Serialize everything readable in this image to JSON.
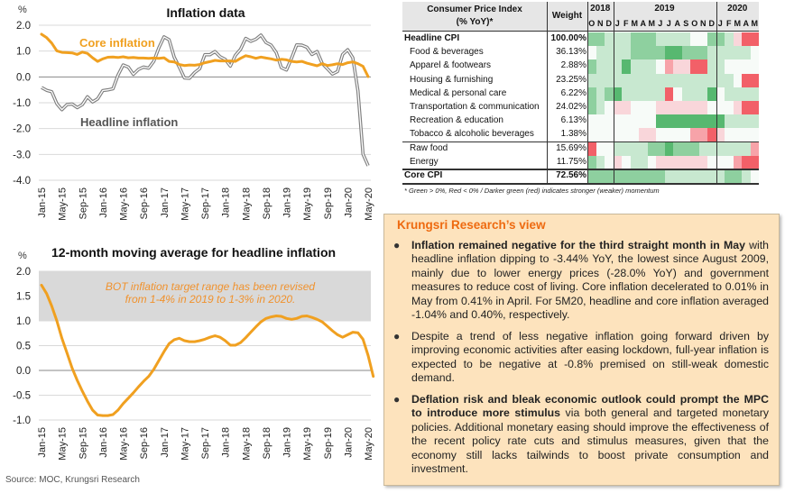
{
  "chart_data": [
    {
      "type": "line",
      "title": "Inflation data",
      "ylabel": "%",
      "xlabel": "",
      "ylim": [
        -4.0,
        2.0
      ],
      "yticks": [
        "2.0",
        "1.0",
        "0.0",
        "-1.0",
        "-2.0",
        "-3.0",
        "-4.0"
      ],
      "ytick_values": [
        2,
        1,
        0,
        -1,
        -2,
        -3,
        -4
      ],
      "grid": true,
      "x_tick_labels": [
        "Jan-15",
        "May-15",
        "Sep-15",
        "Jan-16",
        "May-16",
        "Sep-16",
        "Jan-17",
        "May-17",
        "Sep-17",
        "Jan-18",
        "May-18",
        "Sep-18",
        "Jan-19",
        "May-19",
        "Sep-19",
        "Jan-20",
        "May-20"
      ],
      "x_start": "Jan-15",
      "x_end": "May-20",
      "annotations": [
        {
          "text": "Core inflation",
          "series": "Core inflation"
        },
        {
          "text": "Headline inflation",
          "series": "Headline inflation"
        }
      ],
      "series": [
        {
          "name": "Headline inflation",
          "color": "#7f7f7f",
          "style": "double-line",
          "values": [
            -0.41,
            -0.52,
            -0.57,
            -1.04,
            -1.27,
            -1.07,
            -1.05,
            -1.19,
            -1.07,
            -0.77,
            -0.97,
            -0.85,
            -0.53,
            -0.5,
            -0.46,
            0.07,
            0.46,
            0.38,
            0.1,
            0.29,
            0.38,
            0.34,
            0.6,
            1.13,
            1.55,
            1.44,
            0.76,
            0.38,
            -0.04,
            -0.05,
            0.17,
            0.32,
            0.86,
            0.86,
            0.98,
            0.78,
            0.68,
            0.42,
            0.84,
            1.07,
            1.49,
            1.38,
            1.46,
            1.62,
            1.33,
            1.23,
            0.94,
            0.36,
            0.27,
            0.73,
            1.24,
            1.23,
            1.15,
            0.87,
            0.98,
            0.52,
            0.32,
            0.11,
            0.21,
            0.87,
            1.05,
            0.74,
            -0.54,
            -2.99,
            -3.44
          ]
        },
        {
          "name": "Core inflation",
          "color": "#f0a020",
          "style": "solid",
          "values": [
            1.65,
            1.52,
            1.31,
            1.01,
            0.95,
            0.94,
            0.93,
            0.87,
            0.96,
            0.91,
            0.74,
            0.6,
            0.7,
            0.76,
            0.77,
            0.75,
            0.78,
            0.74,
            0.75,
            0.73,
            0.73,
            0.72,
            0.73,
            0.72,
            0.74,
            0.6,
            0.58,
            0.48,
            0.44,
            0.46,
            0.45,
            0.48,
            0.55,
            0.59,
            0.64,
            0.62,
            0.62,
            0.62,
            0.6,
            0.72,
            0.82,
            0.78,
            0.72,
            0.77,
            0.73,
            0.7,
            0.65,
            0.68,
            0.66,
            0.6,
            0.58,
            0.6,
            0.53,
            0.48,
            0.43,
            0.51,
            0.44,
            0.47,
            0.51,
            0.48,
            0.55,
            0.58,
            0.51,
            0.41,
            0.01
          ]
        }
      ]
    },
    {
      "type": "line",
      "title": "12-month moving average for headline inflation",
      "ylabel": "%",
      "xlabel": "",
      "ylim": [
        -1.0,
        2.0
      ],
      "yticks": [
        "2.0",
        "1.5",
        "1.0",
        "0.5",
        "0.0",
        "-0.5",
        "-1.0"
      ],
      "ytick_values": [
        2,
        1.5,
        1,
        0.5,
        0,
        -0.5,
        -1
      ],
      "grid": true,
      "shaded_band": {
        "from": 1.0,
        "to": 2.0,
        "color": "#d9d9d9"
      },
      "annotation": [
        "BOT inflation target range has been revised",
        "from 1-4% in 2019 to 1-3% in 2020."
      ],
      "x_tick_labels": [
        "Jan-15",
        "May-15",
        "Sep-15",
        "Jan-16",
        "May-16",
        "Sep-16",
        "Jan-17",
        "May-17",
        "Sep-17",
        "Jan-18",
        "May-18",
        "Sep-18",
        "Jan-19",
        "May-19",
        "Sep-19",
        "Jan-20",
        "May-20"
      ],
      "series": [
        {
          "name": "12-month moving average headline inflation",
          "color": "#f0a020",
          "values": [
            1.72,
            1.55,
            1.3,
            1.0,
            0.65,
            0.35,
            0.05,
            -0.2,
            -0.42,
            -0.62,
            -0.8,
            -0.9,
            -0.91,
            -0.91,
            -0.89,
            -0.8,
            -0.67,
            -0.56,
            -0.45,
            -0.33,
            -0.22,
            -0.12,
            0.02,
            0.2,
            0.38,
            0.54,
            0.62,
            0.65,
            0.6,
            0.58,
            0.58,
            0.6,
            0.63,
            0.67,
            0.7,
            0.67,
            0.6,
            0.51,
            0.51,
            0.56,
            0.66,
            0.77,
            0.88,
            0.98,
            1.05,
            1.08,
            1.1,
            1.09,
            1.05,
            1.03,
            1.05,
            1.09,
            1.1,
            1.07,
            1.03,
            0.98,
            0.89,
            0.8,
            0.72,
            0.67,
            0.72,
            0.77,
            0.76,
            0.63,
            0.3,
            -0.12
          ]
        }
      ]
    },
    {
      "type": "heatmap",
      "title": "Consumer Price Index (%YoY)*",
      "column_years": [
        {
          "year": "2018",
          "span": 3
        },
        {
          "year": "2019",
          "span": 12
        },
        {
          "year": "2020",
          "span": 5
        }
      ],
      "columns": [
        "O",
        "N",
        "D",
        "J",
        "F",
        "M",
        "A",
        "M",
        "J",
        "J",
        "A",
        "S",
        "O",
        "N",
        "D",
        "J",
        "F",
        "M",
        "A",
        "M"
      ],
      "scale_note": "cell value = momentum level: +3 dark green ... 0 neutral ... -3 dark red",
      "rows": [
        {
          "label": "Headline CPI",
          "weight": "100.00%",
          "bold": true,
          "values": [
            2,
            2,
            1,
            1,
            1,
            2,
            2,
            2,
            1,
            1,
            1,
            1,
            0,
            0,
            2,
            2,
            1,
            -1,
            -3,
            -3
          ]
        },
        {
          "label": "Food & beverages",
          "weight": "36.13%",
          "indent": true,
          "values": [
            0,
            1,
            1,
            1,
            1,
            2,
            2,
            2,
            2,
            3,
            3,
            2,
            2,
            2,
            1,
            1,
            1,
            1,
            1,
            0
          ]
        },
        {
          "label": "Apparel & footwears",
          "weight": "2.88%",
          "indent": true,
          "values": [
            2,
            1,
            1,
            1,
            3,
            1,
            1,
            1,
            0,
            -2,
            -1,
            -1,
            -3,
            -3,
            1,
            1,
            0,
            0,
            0,
            0
          ]
        },
        {
          "label": "Housing & furnishing",
          "weight": "23.25%",
          "indent": true,
          "values": [
            1,
            1,
            1,
            1,
            1,
            1,
            1,
            1,
            1,
            1,
            1,
            1,
            1,
            1,
            1,
            1,
            1,
            0,
            -3,
            -3
          ]
        },
        {
          "label": "Medical & personal care",
          "weight": "6.22%",
          "indent": true,
          "values": [
            2,
            1,
            2,
            3,
            1,
            1,
            1,
            1,
            1,
            -3,
            0,
            1,
            1,
            1,
            3,
            0,
            1,
            1,
            1,
            1
          ]
        },
        {
          "label": "Transportation & communication",
          "weight": "24.02%",
          "indent": true,
          "values": [
            2,
            1,
            0,
            -1,
            -1,
            0,
            0,
            0,
            -1,
            -1,
            -1,
            -1,
            -1,
            -1,
            0,
            0,
            0,
            -1,
            -3,
            -3
          ]
        },
        {
          "label": "Recreation & education",
          "weight": "6.13%",
          "indent": true,
          "values": [
            0,
            0,
            0,
            0,
            0,
            0,
            0,
            0,
            3,
            3,
            3,
            3,
            3,
            3,
            3,
            3,
            1,
            1,
            1,
            1
          ]
        },
        {
          "label": "Tobacco & alcoholic beverages",
          "weight": "1.38%",
          "indent": true,
          "values": [
            0,
            0,
            0,
            0,
            0,
            0,
            -1,
            -1,
            0,
            0,
            0,
            0,
            -2,
            -2,
            -3,
            -1,
            0,
            0,
            0,
            0
          ]
        },
        {
          "label": "Raw food",
          "weight": "15.69%",
          "indent": true,
          "group_start": true,
          "values": [
            -3,
            0,
            0,
            1,
            1,
            1,
            1,
            2,
            2,
            3,
            2,
            2,
            2,
            1,
            1,
            1,
            1,
            1,
            1,
            -2
          ]
        },
        {
          "label": "Energy",
          "weight": "11.75%",
          "indent": true,
          "values": [
            2,
            1,
            0,
            -1,
            0,
            1,
            1,
            0,
            -1,
            -1,
            -1,
            -1,
            -1,
            -1,
            0,
            0,
            0,
            -2,
            -3,
            -3
          ]
        },
        {
          "label": "Core CPI",
          "weight": "72.56%",
          "bold": true,
          "group_start": true,
          "values": [
            2,
            2,
            2,
            2,
            2,
            2,
            2,
            2,
            2,
            1,
            1,
            1,
            1,
            1,
            1,
            1,
            2,
            2,
            1,
            0
          ]
        }
      ],
      "header_label_line1": "Consumer Price Index",
      "header_label_line2": "(% YoY)*",
      "weight_header": "Weight",
      "footnote": "* Green > 0%, Red < 0% / Darker green (red) indicates stronger (weaker) momentum",
      "colors": {
        "green3": "#57b870",
        "green2": "#8ed09f",
        "green1": "#c8e8d0",
        "neutral": "#f7fbf8",
        "red1": "#f9d6da",
        "red2": "#f7a3a9",
        "red3": "#f26068"
      }
    }
  ],
  "source": "Source: MOC, Krungsri Research",
  "view": {
    "title": "Krungsri Research’s view",
    "bullets": [
      {
        "bold": "Inflation remained negative for the third straight month in May",
        "text": " with headline inflation dipping to -3.44% YoY, the lowest since August 2009, mainly due to lower energy prices (-28.0% YoY) and government measures to reduce cost of living. Core inflation decelerated to 0.01% in May from 0.41% in April. For 5M20, headline and core inflation averaged -1.04% and 0.40%, respectively."
      },
      {
        "bold": "",
        "text": "Despite a trend of less negative inflation going forward driven by improving economic activities after easing lockdown, full-year inflation is expected to be negative at -0.8% premised on still-weak domestic demand."
      },
      {
        "bold": "Deflation risk and bleak economic outlook could prompt the MPC to introduce more stimulus",
        "text": " via both general and targeted monetary policies. Additional monetary easing should improve the effectiveness of the recent policy rate cuts and stimulus measures, given that the economy still lacks tailwinds to boost private consumption and investment."
      }
    ]
  }
}
